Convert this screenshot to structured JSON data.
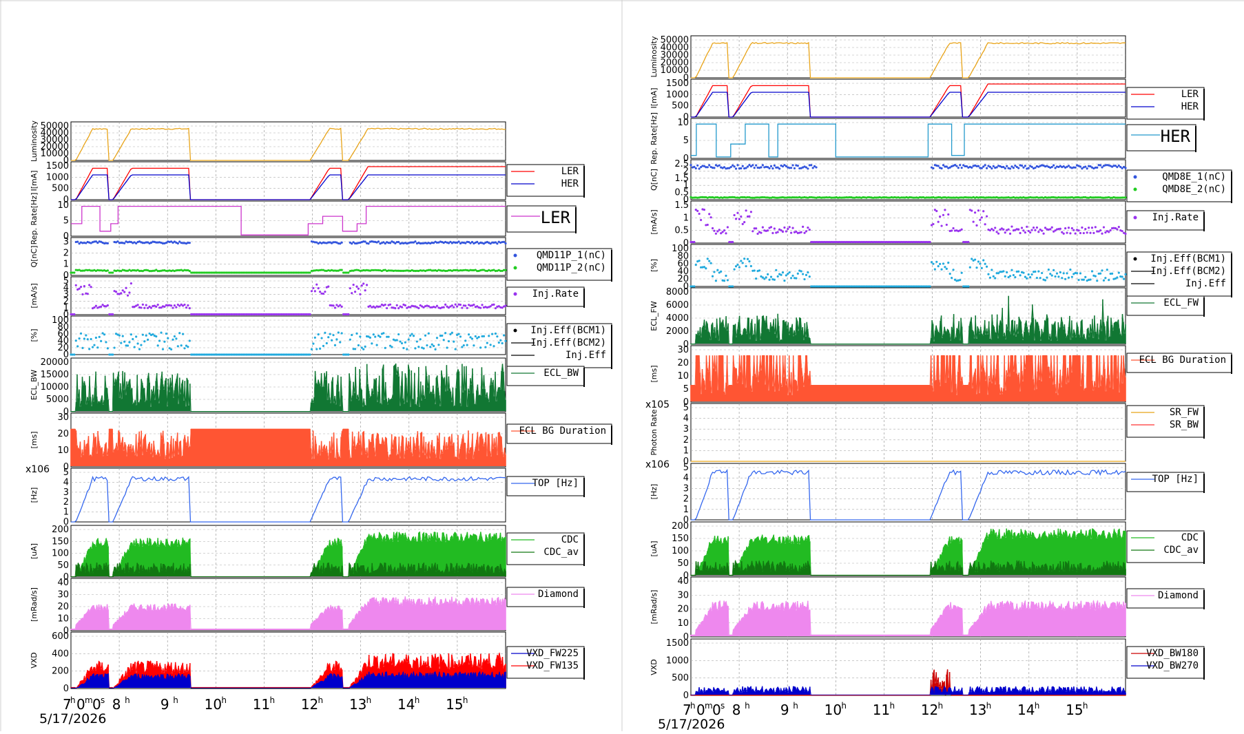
{
  "timestamp_label": "5/17/2026",
  "hour_ticks": [
    "8",
    "9",
    "10",
    "11",
    "12",
    "13",
    "14",
    "15"
  ],
  "axis_start_label": "7h0m0s",
  "panels_left": [
    {
      "id": "L-lum",
      "ylabel": "Luminosity",
      "yticks": [
        "0",
        "10000",
        "20000",
        "30000",
        "40000",
        "50000"
      ],
      "legend": [],
      "series": [
        {
          "name": "",
          "color": "#e8a317",
          "style": "line",
          "shape": "lum"
        }
      ],
      "ymax": 50000
    },
    {
      "id": "L-cur",
      "ylabel": "I[mA]",
      "yticks": [
        "0",
        "500",
        "1000",
        "1500"
      ],
      "legend": [
        {
          "label": "LER",
          "color": "#ff0000"
        },
        {
          "label": "HER",
          "color": "#0000cc"
        }
      ],
      "series": [
        {
          "name": "LER",
          "color": "#ff0000",
          "style": "line",
          "shape": "ler"
        },
        {
          "name": "HER",
          "color": "#0000cc",
          "style": "line",
          "shape": "her"
        }
      ],
      "ymax": 1700
    },
    {
      "id": "L-rep",
      "ylabel": "Rep. Rate[Hz]",
      "yticks": [
        "0",
        "5",
        "10"
      ],
      "legend": [
        {
          "label": "LER",
          "color": "#cc33cc",
          "big": true
        }
      ],
      "series": [
        {
          "name": "LER",
          "color": "#cc33cc",
          "style": "step",
          "shape": "rep"
        }
      ],
      "ymax": 13
    },
    {
      "id": "L-q",
      "ylabel": "Q[nC]",
      "yticks": [
        "0",
        "1",
        "2",
        "3"
      ],
      "legend": [
        {
          "label": "QMD11P_1(nC)",
          "color": "#3355dd",
          "dot": true
        },
        {
          "label": "QMD11P_2(nC)",
          "color": "#22cc22",
          "dot": true
        }
      ],
      "series": [
        {
          "name": "QMD11P_1(nC)",
          "color": "#3355dd",
          "style": "dots",
          "shape": "qhigh"
        },
        {
          "name": "QMD11P_2(nC)",
          "color": "#22cc22",
          "style": "dots",
          "shape": "qlow"
        }
      ],
      "ymax": 3.2
    },
    {
      "id": "L-inj",
      "ylabel": "[mA/s]",
      "yticks": [
        "0",
        "1",
        "2",
        "3",
        "4",
        "5"
      ],
      "legend": [
        {
          "label": "Inj.Rate",
          "color": "#9933ee",
          "dot": true
        }
      ],
      "series": [
        {
          "name": "Inj.Rate",
          "color": "#9933ee",
          "style": "dots",
          "shape": "injrate"
        }
      ],
      "ymax": 5.5
    },
    {
      "id": "L-eff",
      "ylabel": "[%]",
      "yticks": [
        "0",
        "20",
        "40",
        "60",
        "80",
        "100"
      ],
      "legend": [
        {
          "label": "Inj.Eff(BCM1)",
          "color": "#000000",
          "dot": true
        },
        {
          "label": "Inj.Eff(BCM2)",
          "color": "#000000"
        },
        {
          "label": "Inj.Eff",
          "color": "#000000"
        }
      ],
      "series": [
        {
          "name": "Inj.Eff",
          "color": "#22aadd",
          "style": "dots",
          "shape": "eff"
        }
      ],
      "ymax": 105
    },
    {
      "id": "L-ecl",
      "ylabel": "ECL_BW",
      "yticks": [
        "0",
        "5000",
        "10000",
        "15000",
        "20000"
      ],
      "legend": [
        {
          "label": "ECL_BW",
          "color": "#117733"
        }
      ],
      "series": [
        {
          "name": "ECL_BW",
          "color": "#117733",
          "style": "spiky",
          "shape": "ecl"
        }
      ],
      "ymax": 21000
    },
    {
      "id": "L-dur",
      "ylabel": "[ms]",
      "yticks": [
        "0",
        "10",
        "20",
        "30"
      ],
      "legend": [
        {
          "label": "ECL BG Duration",
          "color": "#ff5533"
        }
      ],
      "series": [
        {
          "name": "ECL BG Duration",
          "color": "#ff5533",
          "style": "spiky",
          "shape": "dur"
        }
      ],
      "ymax": 35
    },
    {
      "id": "L-top",
      "ylabel": "[Hz]",
      "yticks": [
        "0",
        "1",
        "2",
        "3",
        "4",
        "5"
      ],
      "mult": "x10^6",
      "legend": [
        {
          "label": "TOP [Hz]",
          "color": "#3366ee"
        }
      ],
      "series": [
        {
          "name": "TOP [Hz]",
          "color": "#3366ee",
          "style": "line",
          "shape": "top"
        }
      ],
      "ymax": 5.2
    },
    {
      "id": "L-cdc",
      "ylabel": "[uA]",
      "yticks": [
        "0",
        "50",
        "100",
        "150",
        "200"
      ],
      "legend": [
        {
          "label": "CDC",
          "color": "#22bb22"
        },
        {
          "label": "CDC_av",
          "color": "#117711"
        }
      ],
      "series": [
        {
          "name": "CDC",
          "color": "#22bb22",
          "style": "spiky",
          "shape": "cdc"
        },
        {
          "name": "CDC_av",
          "color": "#117711",
          "style": "spiky",
          "shape": "cdcav"
        }
      ],
      "ymax": 220
    },
    {
      "id": "L-dia",
      "ylabel": "[mRad/s]",
      "yticks": [
        "0",
        "10",
        "20",
        "30",
        "40"
      ],
      "legend": [
        {
          "label": "Diamond",
          "color": "#ee88ee"
        }
      ],
      "series": [
        {
          "name": "Diamond",
          "color": "#ee88ee",
          "style": "spiky",
          "shape": "dia"
        }
      ],
      "ymax": 42
    },
    {
      "id": "L-vxd",
      "ylabel": "VXD",
      "yticks": [
        "0",
        "200",
        "400",
        "600"
      ],
      "legend": [
        {
          "label": "VXD_FW225",
          "color": "#0000cc"
        },
        {
          "label": "VXD_FW135",
          "color": "#ff0000"
        }
      ],
      "series": [
        {
          "name": "VXD_FW135",
          "color": "#ff0000",
          "style": "spiky",
          "shape": "vxdred"
        },
        {
          "name": "VXD_FW225",
          "color": "#0000cc",
          "style": "spiky",
          "shape": "vxdblue"
        }
      ],
      "ymax": 700
    }
  ],
  "panels_right": [
    {
      "id": "R-lum",
      "ylabel": "Luminosity",
      "yticks": [
        "0",
        "10000",
        "20000",
        "30000",
        "40000",
        "50000"
      ],
      "legend": [],
      "series": [
        {
          "name": "",
          "color": "#e8a317",
          "style": "line",
          "shape": "lum"
        }
      ],
      "ymax": 50000
    },
    {
      "id": "R-cur",
      "ylabel": "I[mA]",
      "yticks": [
        "0",
        "500",
        "1000",
        "1500"
      ],
      "legend": [
        {
          "label": "LER",
          "color": "#ff0000"
        },
        {
          "label": "HER",
          "color": "#0000cc"
        }
      ],
      "series": [
        {
          "name": "LER",
          "color": "#ff0000",
          "style": "line",
          "shape": "ler"
        },
        {
          "name": "HER",
          "color": "#0000cc",
          "style": "line",
          "shape": "her"
        }
      ],
      "ymax": 1700
    },
    {
      "id": "R-rep",
      "ylabel": "Rep. Rate[Hz]",
      "yticks": [
        "0",
        "5",
        "10"
      ],
      "legend": [
        {
          "label": "HER",
          "color": "#2299cc",
          "big": true
        }
      ],
      "series": [
        {
          "name": "HER",
          "color": "#2299cc",
          "style": "step",
          "shape": "reph"
        }
      ],
      "ymax": 13
    },
    {
      "id": "R-q",
      "ylabel": "Q[nC]",
      "yticks": [
        "0",
        "0.5",
        "1",
        "1.5",
        "2",
        "2.5"
      ],
      "legend": [
        {
          "label": "QMD8E_1(nC)",
          "color": "#3355dd",
          "dot": true
        },
        {
          "label": "QMD8E_2(nC)",
          "color": "#22cc22",
          "dot": true
        }
      ],
      "series": [
        {
          "name": "QMD8E_1(nC)",
          "color": "#3355dd",
          "style": "dots",
          "shape": "qhighr"
        },
        {
          "name": "QMD8E_2(nC)",
          "color": "#22cc22",
          "style": "dots",
          "shape": "qlowr"
        }
      ],
      "ymax": 3
    },
    {
      "id": "R-inj",
      "ylabel": "[mA/s]",
      "yticks": [
        "0",
        "0.5",
        "1",
        "1.5"
      ],
      "legend": [
        {
          "label": "Inj.Rate",
          "color": "#9933ee",
          "dot": true
        }
      ],
      "series": [
        {
          "name": "Inj.Rate",
          "color": "#9933ee",
          "style": "dots",
          "shape": "injrater"
        }
      ],
      "ymax": 1.9
    },
    {
      "id": "R-eff",
      "ylabel": "[%]",
      "yticks": [
        "0",
        "20",
        "40",
        "60",
        "80",
        "100"
      ],
      "legend": [
        {
          "label": "Inj.Eff(BCM1)",
          "color": "#000000",
          "dot": true
        },
        {
          "label": "Inj.Eff(BCM2)",
          "color": "#000000"
        },
        {
          "label": "Inj.Eff",
          "color": "#000000"
        }
      ],
      "series": [
        {
          "name": "Inj.Eff",
          "color": "#22aadd",
          "style": "dots",
          "shape": "effr"
        }
      ],
      "ymax": 105
    },
    {
      "id": "R-ecl",
      "ylabel": "ECL_FW",
      "yticks": [
        "0",
        "2000",
        "4000",
        "6000",
        "8000"
      ],
      "legend": [
        {
          "label": "ECL_FW",
          "color": "#117733"
        }
      ],
      "series": [
        {
          "name": "ECL_FW",
          "color": "#117733",
          "style": "spiky",
          "shape": "eclr"
        }
      ],
      "ymax": 8800
    },
    {
      "id": "R-dur",
      "ylabel": "[ms]",
      "yticks": [
        "0",
        "5",
        "10",
        "20",
        "30"
      ],
      "legend": [
        {
          "label": "ECL BG Duration",
          "color": "#ff5533"
        }
      ],
      "series": [
        {
          "name": "ECL BG Duration",
          "color": "#ff5533",
          "style": "spiky",
          "shape": "durr"
        }
      ],
      "ymax": 38
    },
    {
      "id": "R-sr",
      "ylabel": "Photon Rate",
      "yticks": [
        "0",
        "1",
        "2",
        "3",
        "4",
        "5"
      ],
      "mult": "x10^5",
      "legend": [
        {
          "label": "SR_FW",
          "color": "#e8a317"
        },
        {
          "label": "SR_BW",
          "color": "#ff3333"
        }
      ],
      "series": [
        {
          "name": "SR_FW",
          "color": "#e8a317",
          "style": "flat",
          "shape": "flat"
        }
      ],
      "ymax": 5.2
    },
    {
      "id": "R-top",
      "ylabel": "[Hz]",
      "yticks": [
        "0",
        "1",
        "2",
        "3",
        "4",
        "5"
      ],
      "mult": "x10^6",
      "legend": [
        {
          "label": "TOP [Hz]",
          "color": "#3366ee"
        }
      ],
      "series": [
        {
          "name": "TOP [Hz]",
          "color": "#3366ee",
          "style": "line",
          "shape": "topr"
        }
      ],
      "ymax": 5.2
    },
    {
      "id": "R-cdc",
      "ylabel": "[uA]",
      "yticks": [
        "0",
        "50",
        "100",
        "150",
        "200"
      ],
      "legend": [
        {
          "label": "CDC",
          "color": "#22bb22"
        },
        {
          "label": "CDC_av",
          "color": "#117711"
        }
      ],
      "series": [
        {
          "name": "CDC",
          "color": "#22bb22",
          "style": "spiky",
          "shape": "cdc"
        },
        {
          "name": "CDC_av",
          "color": "#117711",
          "style": "spiky",
          "shape": "cdcav"
        }
      ],
      "ymax": 220
    },
    {
      "id": "R-dia",
      "ylabel": "[mRad/s]",
      "yticks": [
        "0",
        "10",
        "20",
        "30",
        "40"
      ],
      "legend": [
        {
          "label": "Diamond",
          "color": "#ee88ee"
        }
      ],
      "series": [
        {
          "name": "Diamond",
          "color": "#ee88ee",
          "style": "spiky",
          "shape": "diar"
        }
      ],
      "ymax": 42
    },
    {
      "id": "R-vxd",
      "ylabel": "VXD",
      "yticks": [
        "0",
        "500",
        "1000",
        "1500"
      ],
      "legend": [
        {
          "label": "VXD_BW180",
          "color": "#cc0000"
        },
        {
          "label": "VXD_BW270",
          "color": "#0000cc"
        }
      ],
      "series": [
        {
          "name": "VXD_BW180",
          "color": "#cc0000",
          "style": "spiky",
          "shape": "vxdr"
        },
        {
          "name": "VXD_BW270",
          "color": "#0000cc",
          "style": "spiky",
          "shape": "vxdb"
        }
      ],
      "ymax": 1650
    }
  ],
  "chart_data": {
    "type": "line",
    "title": "",
    "x_range_hours": [
      7,
      16
    ],
    "beam_periods_hours": [
      [
        7.1,
        7.8
      ],
      [
        7.85,
        9.45
      ],
      [
        11.95,
        12.6
      ],
      [
        12.75,
        16
      ]
    ],
    "series_levels": {
      "Luminosity_peak": 45000,
      "LER_mA": 1550,
      "HER_mA": 1200,
      "TOP_Hz": 4500000,
      "CDC_uA": 190,
      "CDC_av_uA": 65,
      "Diamond_mRad_s": 18
    }
  }
}
